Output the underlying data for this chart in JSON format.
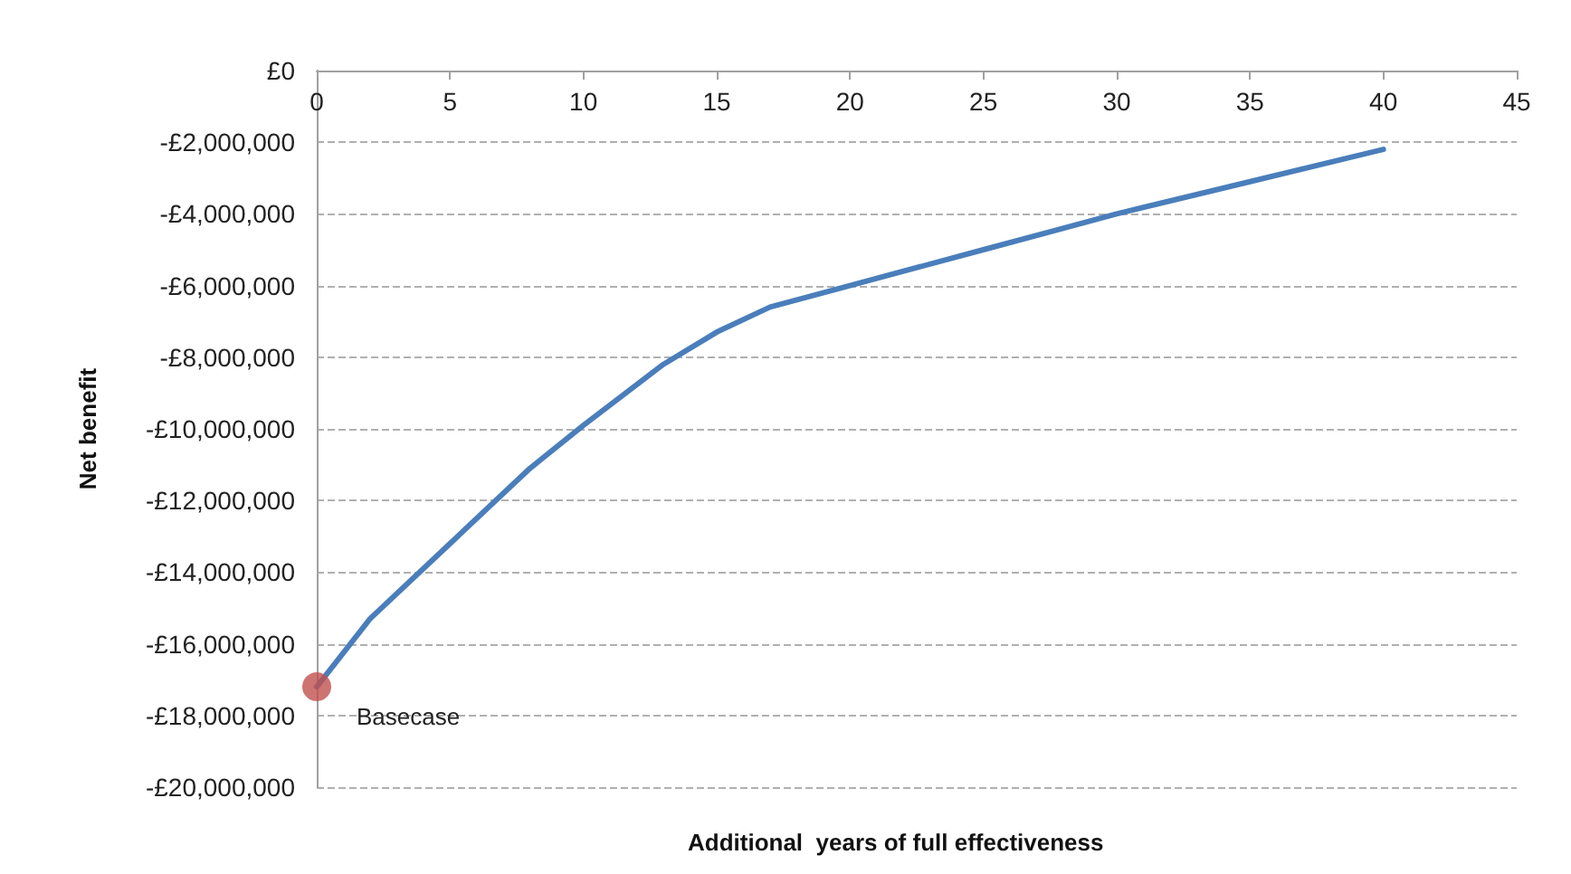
{
  "chart_data": {
    "type": "line",
    "xlabel": "Additional  years of full effectiveness",
    "ylabel": "Net benefit",
    "series": [
      {
        "color": "#4a7ebb",
        "marker": "none",
        "x": [
          0,
          2,
          5,
          8,
          10,
          13,
          15,
          17,
          20,
          25,
          30,
          35,
          40
        ],
        "values": [
          -17200000,
          -15300000,
          -13200000,
          -11100000,
          -9900000,
          -8200000,
          -7300000,
          -6600000,
          -6000000,
          -5000000,
          -4000000,
          -3100000,
          -2200000
        ]
      },
      {
        "type": "scatter",
        "marker": "circle",
        "color": "#c0504d",
        "x": [
          0
        ],
        "values": [
          -17200000
        ]
      }
    ],
    "annotations": [
      {
        "text": "Basecase",
        "x": 0,
        "y": -17200000
      }
    ],
    "xlim": [
      0,
      45
    ],
    "xticks": [
      0,
      5,
      10,
      15,
      20,
      25,
      30,
      35,
      40,
      45
    ],
    "ylim": [
      -20000000,
      0
    ],
    "yticks": [
      {
        "value": 0,
        "label": "£0"
      },
      {
        "value": -2000000,
        "label": "-£2,000,000"
      },
      {
        "value": -4000000,
        "label": "-£4,000,000"
      },
      {
        "value": -6000000,
        "label": "-£6,000,000"
      },
      {
        "value": -8000000,
        "label": "-£8,000,000"
      },
      {
        "value": -10000000,
        "label": "-£10,000,000"
      },
      {
        "value": -12000000,
        "label": "-£12,000,000"
      },
      {
        "value": -14000000,
        "label": "-£14,000,000"
      },
      {
        "value": -16000000,
        "label": "-£16,000,000"
      },
      {
        "value": -18000000,
        "label": "-£18,000,000"
      },
      {
        "value": -20000000,
        "label": "-£20,000,000"
      }
    ],
    "grid": "y",
    "line_style": "solid"
  }
}
